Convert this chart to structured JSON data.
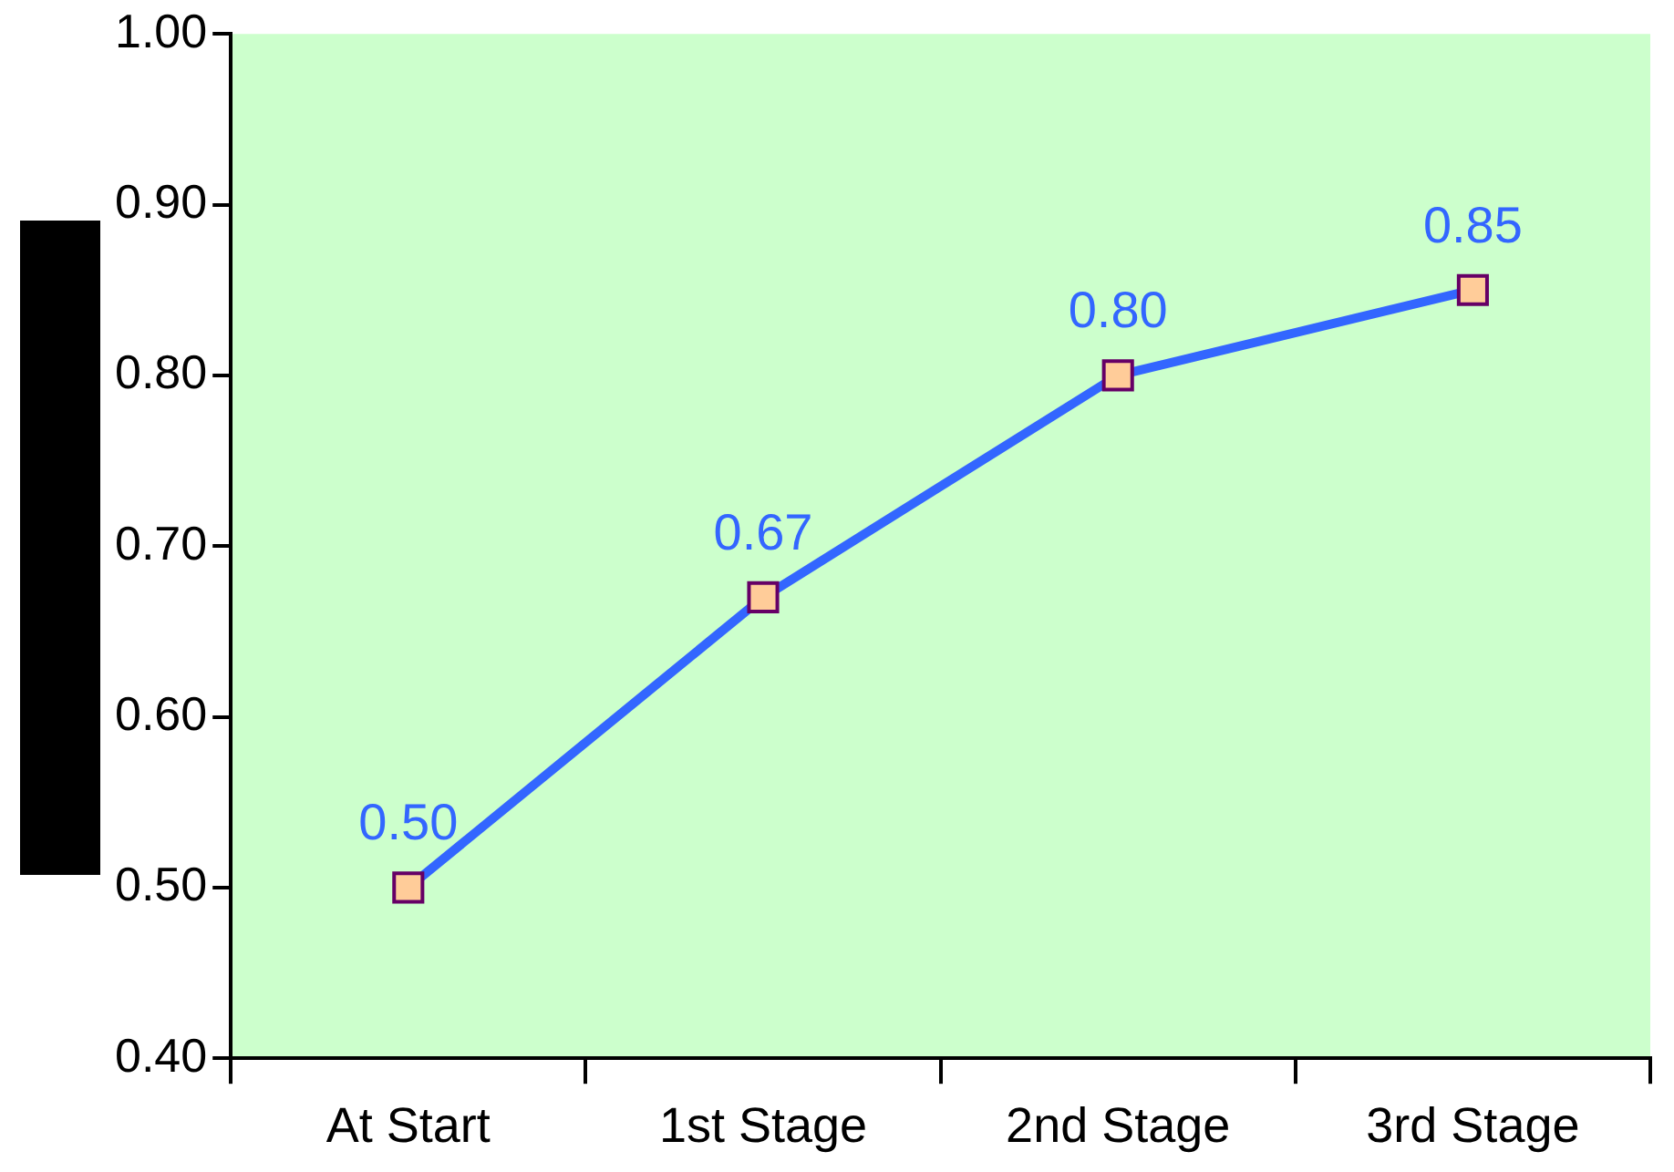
{
  "chart_data": {
    "type": "line",
    "categories": [
      "At Start",
      "1st Stage",
      "2nd Stage",
      "3rd Stage"
    ],
    "values": [
      0.5,
      0.67,
      0.8,
      0.85
    ],
    "color": "#3366ff",
    "marker": "square",
    "value_labels": [
      "0.50",
      "0.67",
      "0.80",
      "0.85"
    ],
    "ylim": [
      0.4,
      1.0
    ],
    "yticks": [
      {
        "value": 0.4,
        "label": "0.40"
      },
      {
        "value": 0.5,
        "label": "0.50"
      },
      {
        "value": 0.6,
        "label": "0.60"
      },
      {
        "value": 0.7,
        "label": "0.70"
      },
      {
        "value": 0.8,
        "label": "0.80"
      },
      {
        "value": 0.9,
        "label": "0.90"
      },
      {
        "value": 1.0,
        "label": "1.00"
      }
    ],
    "grid": false,
    "legend": false
  }
}
